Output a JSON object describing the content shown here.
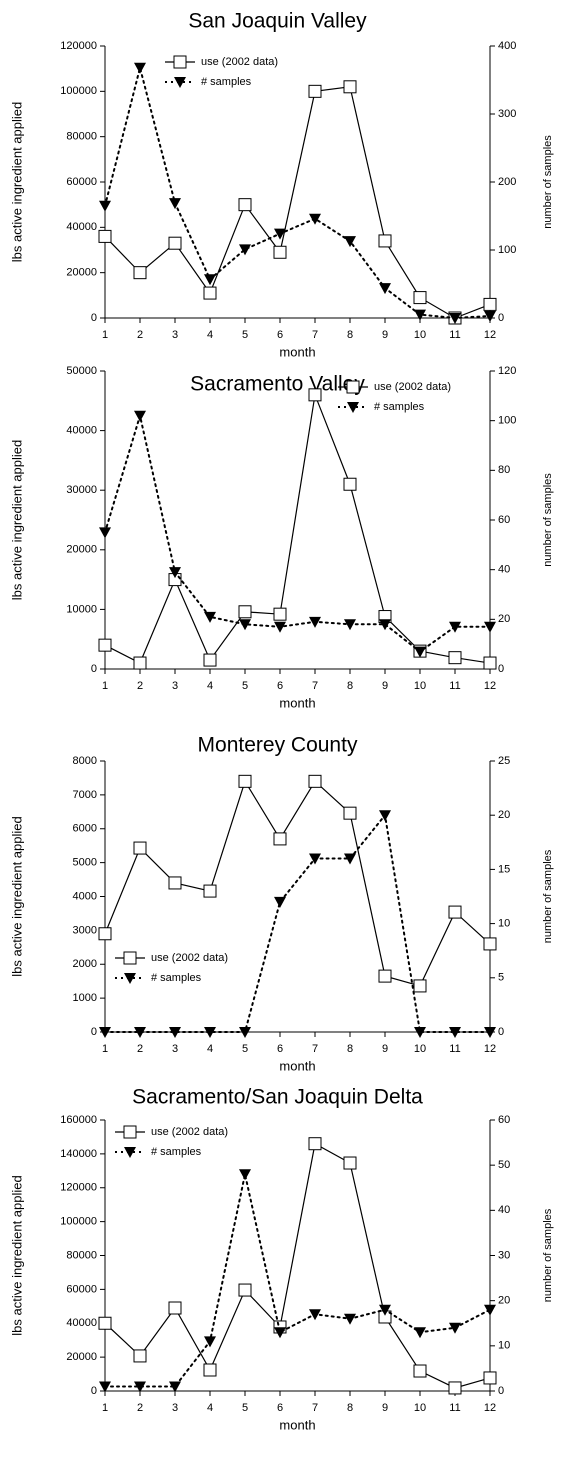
{
  "chart_data": [
    {
      "type": "line",
      "title": "San Joaquin Valley",
      "x_label": "month",
      "y_label": "lbs active ingredient applied",
      "y2_label": "number of samples",
      "x": [
        1,
        2,
        3,
        4,
        5,
        6,
        7,
        8,
        9,
        10,
        11,
        12
      ],
      "xlim": [
        1,
        12
      ],
      "xticks": [
        1,
        2,
        3,
        4,
        5,
        6,
        7,
        8,
        9,
        10,
        11,
        12
      ],
      "ylim": [
        0,
        120000
      ],
      "yticks": [
        0,
        20000,
        40000,
        60000,
        80000,
        100000,
        120000
      ],
      "y2lim": [
        0,
        400
      ],
      "y2ticks": [
        0,
        100,
        200,
        300,
        400
      ],
      "legend": "upper center",
      "series": [
        {
          "name": "use (2002 data)",
          "color": "#000000",
          "line_style": "solid",
          "marker": "square",
          "values": [
            36000,
            20000,
            33000,
            11000,
            50000,
            29000,
            100000,
            102000,
            34000,
            9000,
            0,
            6000
          ]
        },
        {
          "name": "# samples",
          "color": "#000000",
          "line_style": "dotted",
          "marker": "triangle-down",
          "axis": "y2",
          "values": [
            165,
            368,
            169,
            57,
            101,
            124,
            146,
            113,
            44,
            5,
            0,
            3
          ]
        }
      ]
    },
    {
      "type": "line",
      "title": "Sacramento Valley",
      "x_label": "month",
      "y_label": "lbs active ingredient applied",
      "y2_label": "number of samples",
      "x": [
        1,
        2,
        3,
        4,
        5,
        6,
        7,
        8,
        9,
        10,
        11,
        12
      ],
      "xlim": [
        1,
        12
      ],
      "xticks": [
        1,
        2,
        3,
        4,
        5,
        6,
        7,
        8,
        9,
        10,
        11,
        12
      ],
      "ylim": [
        0,
        50000
      ],
      "yticks": [
        0,
        10000,
        20000,
        30000,
        40000,
        50000
      ],
      "y2lim": [
        0,
        120
      ],
      "y2ticks": [
        0,
        20,
        40,
        60,
        80,
        100,
        120
      ],
      "legend": "upper right",
      "series": [
        {
          "name": "use (2002 data)",
          "color": "#000000",
          "line_style": "solid",
          "marker": "square",
          "values": [
            4000,
            1000,
            15000,
            1500,
            9600,
            9200,
            46000,
            31000,
            8800,
            3000,
            1900,
            1000
          ]
        },
        {
          "name": "# samples",
          "color": "#000000",
          "line_style": "dotted",
          "marker": "triangle-down",
          "axis": "y2",
          "values": [
            55,
            102,
            39,
            21,
            18,
            17,
            19,
            18,
            18,
            7,
            17,
            17
          ]
        }
      ]
    },
    {
      "type": "line",
      "title": "Monterey County",
      "x_label": "month",
      "y_label": "lbs active ingredient applied",
      "y2_label": "number of samples",
      "x": [
        1,
        2,
        3,
        4,
        5,
        6,
        7,
        8,
        9,
        10,
        11,
        12
      ],
      "xlim": [
        1,
        12
      ],
      "xticks": [
        1,
        2,
        3,
        4,
        5,
        6,
        7,
        8,
        9,
        10,
        11,
        12
      ],
      "ylim": [
        0,
        8000
      ],
      "yticks": [
        0,
        1000,
        2000,
        3000,
        4000,
        5000,
        6000,
        7000,
        8000
      ],
      "y2lim": [
        0,
        25
      ],
      "y2ticks": [
        0,
        5,
        10,
        15,
        20,
        25
      ],
      "legend": "lower left",
      "series": [
        {
          "name": "use (2002 data)",
          "color": "#000000",
          "line_style": "solid",
          "marker": "square",
          "values": [
            2900,
            5430,
            4400,
            4160,
            7400,
            5700,
            7400,
            6460,
            1650,
            1360,
            3540,
            2600
          ]
        },
        {
          "name": "# samples",
          "color": "#000000",
          "line_style": "dotted",
          "marker": "triangle-down",
          "axis": "y2",
          "values": [
            0,
            0,
            0,
            0,
            0,
            12,
            16,
            16,
            20,
            0,
            0,
            0
          ]
        }
      ]
    },
    {
      "type": "line",
      "title": "Sacramento/San Joaquin Delta",
      "x_label": "month",
      "y_label": "lbs active ingredient applied",
      "y2_label": "number of samples",
      "x": [
        1,
        2,
        3,
        4,
        5,
        6,
        7,
        8,
        9,
        10,
        11,
        12
      ],
      "xlim": [
        1,
        12
      ],
      "xticks": [
        1,
        2,
        3,
        4,
        5,
        6,
        7,
        8,
        9,
        10,
        11,
        12
      ],
      "ylim": [
        0,
        160000
      ],
      "yticks": [
        0,
        20000,
        40000,
        60000,
        80000,
        100000,
        120000,
        140000,
        160000
      ],
      "y2lim": [
        0,
        60
      ],
      "y2ticks": [
        0,
        10,
        20,
        30,
        40,
        50,
        60
      ],
      "legend": "upper left",
      "series": [
        {
          "name": "use (2002 data)",
          "color": "#000000",
          "line_style": "solid",
          "marker": "square",
          "values": [
            40000,
            20700,
            49000,
            12400,
            59600,
            37800,
            146000,
            134600,
            43700,
            11800,
            1800,
            7700
          ]
        },
        {
          "name": "# samples",
          "color": "#000000",
          "line_style": "dotted",
          "marker": "triangle-down",
          "axis": "y2",
          "values": [
            1,
            1,
            1,
            11,
            48,
            13,
            17,
            16,
            18,
            13,
            14,
            18
          ]
        }
      ]
    }
  ]
}
